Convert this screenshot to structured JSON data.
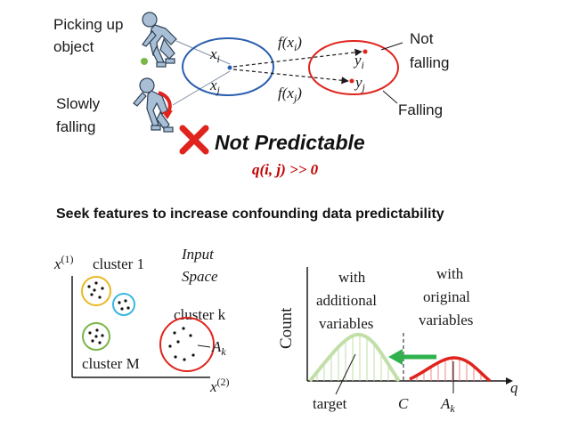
{
  "colors": {
    "blue": "#2b5fb0",
    "red": "#e0231c",
    "green": "#7ab648",
    "light_green": "#c2dfa9",
    "gold": "#e8b923",
    "cyan": "#3ab7e0",
    "figure": "#a9bfd6",
    "figure_stroke": "#2d3f55",
    "dark_red": "#c00000"
  },
  "top": {
    "picking_line1": "Picking up",
    "picking_line2": "object",
    "slowly_line1": "Slowly",
    "slowly_line2": "falling",
    "xi": "x",
    "xi_sub": "i",
    "xj": "x",
    "xj_sub": "j",
    "yi": "y",
    "yi_sub": "i",
    "yj": "y",
    "yj_sub": "j",
    "f_xi": "f(x",
    "f_xi_sub": "i",
    "f_xi_close": ")",
    "f_xj": "f(x",
    "f_xj_sub": "j",
    "f_xj_close": ")",
    "not_falling_line1": "Not",
    "not_falling_line2": "falling",
    "falling": "Falling",
    "not_predictable": "Not Predictable",
    "q_formula": "q(i, j) >> 0",
    "cross_icon": "cross-mark-icon"
  },
  "heading": "Seek features to increase confounding data predictability",
  "left_panel": {
    "y_axis": "x",
    "y_axis_sup": "(1)",
    "x_axis": "x",
    "x_axis_sup": "(2)",
    "cluster1": "cluster 1",
    "clusterk": "cluster k",
    "clusterM": "cluster M",
    "input_line1": "Input",
    "input_line2": "Space",
    "ak": "A",
    "ak_sub": "k"
  },
  "right_panel": {
    "ylabel": "Count",
    "xlabel": "q",
    "with_add_1": "with",
    "with_add_2": "additional",
    "with_add_3": "variables",
    "with_orig_1": "with",
    "with_orig_2": "original",
    "with_orig_3": "variables",
    "target": "target",
    "c": "C",
    "ak": "A",
    "ak_sub": "k"
  }
}
